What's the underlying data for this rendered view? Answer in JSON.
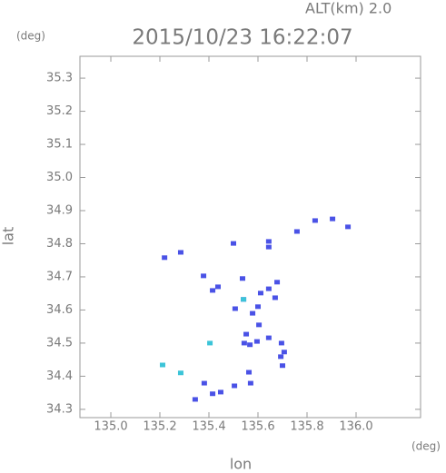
{
  "chart_data": {
    "type": "scatter",
    "title": "2015/10/23 16:22:07",
    "annotation": "ALT(km) 2.0",
    "y_unit": "(deg)",
    "x_unit": "(deg)",
    "xlabel": "lon",
    "ylabel": "lat",
    "xlim": [
      134.874,
      136.263
    ],
    "ylim": [
      34.275,
      35.366
    ],
    "xticks": [
      {
        "value": 135,
        "label": "135.0"
      },
      135.2,
      135.4,
      135.6,
      135.8,
      {
        "value": 136,
        "label": "136.0"
      }
    ],
    "yticks": [
      34.3,
      34.4,
      34.5,
      34.6,
      34.7,
      34.8,
      34.9,
      {
        "value": 35,
        "label": "35.0"
      },
      35.1,
      35.2,
      35.3
    ],
    "series": [
      {
        "color": "#4a52e6",
        "x": [
          135.219,
          135.285,
          135.5,
          135.644,
          135.644,
          135.759,
          135.833,
          135.904,
          135.967,
          135.378,
          135.537,
          135.678,
          135.415,
          135.437,
          135.541,
          135.507,
          135.644,
          135.67,
          135.611,
          135.578,
          135.604,
          135.6,
          135.552,
          135.567,
          135.544,
          135.596,
          135.644,
          135.696,
          135.707,
          135.693,
          135.7,
          135.381,
          135.57,
          135.563,
          135.504,
          135.448,
          135.415,
          135.344
        ],
        "y": [
          34.758,
          34.774,
          34.801,
          34.807,
          34.79,
          34.837,
          34.87,
          34.875,
          34.851,
          34.703,
          34.695,
          34.684,
          34.659,
          34.67,
          34.632,
          34.604,
          34.664,
          34.637,
          34.651,
          34.59,
          34.555,
          34.61,
          34.527,
          34.495,
          34.5,
          34.505,
          34.516,
          34.5,
          34.473,
          34.459,
          34.432,
          34.379,
          34.379,
          34.412,
          34.371,
          34.352,
          34.347,
          34.33
        ]
      },
      {
        "color": "#3cc4d8",
        "x": [
          135.404,
          135.211,
          135.285,
          135.541
        ],
        "y": [
          34.5,
          34.434,
          34.41,
          34.632
        ]
      }
    ]
  }
}
